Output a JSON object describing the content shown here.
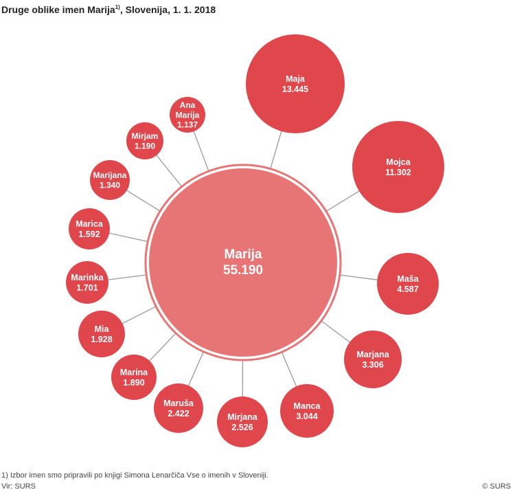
{
  "title": {
    "text": "Druge oblike imen Marija",
    "superscript": "1)",
    "suffix": ", Slovenija, 1. 1. 2018"
  },
  "colors": {
    "outer_bubble": "#e0474c",
    "center_bubble": "#e87575",
    "connector": "#999999",
    "text": "#ffffff"
  },
  "center": {
    "name": "Marija",
    "value": "55.190"
  },
  "names": [
    {
      "key": "maja",
      "lines": [
        "Maja"
      ],
      "value": "13.445"
    },
    {
      "key": "mojca",
      "lines": [
        "Mojca"
      ],
      "value": "11.302"
    },
    {
      "key": "masa",
      "lines": [
        "Maša"
      ],
      "value": "4.587"
    },
    {
      "key": "marjana",
      "lines": [
        "Marjana"
      ],
      "value": "3.306"
    },
    {
      "key": "manca",
      "lines": [
        "Manca"
      ],
      "value": "3.044"
    },
    {
      "key": "mirjana",
      "lines": [
        "Mirjana"
      ],
      "value": "2.526"
    },
    {
      "key": "marusa",
      "lines": [
        "Maruša"
      ],
      "value": "2.422"
    },
    {
      "key": "marina",
      "lines": [
        "Marina"
      ],
      "value": "1.890"
    },
    {
      "key": "mia",
      "lines": [
        "Mia"
      ],
      "value": "1.928"
    },
    {
      "key": "marinka",
      "lines": [
        "Marinka"
      ],
      "value": "1.701"
    },
    {
      "key": "marica",
      "lines": [
        "Marica"
      ],
      "value": "1.592"
    },
    {
      "key": "marijana",
      "lines": [
        "Marijana"
      ],
      "value": "1.340"
    },
    {
      "key": "mirjam",
      "lines": [
        "Mirjam"
      ],
      "value": "1.190"
    },
    {
      "key": "ana-marija",
      "lines": [
        "Ana",
        "Marija"
      ],
      "value": "1.137"
    }
  ],
  "footnote": "1) Izbor imen smo pripravili po knjigi Simona Lenarčiča Vse o imenih v Sloveniji.",
  "source": "Vir: SURS",
  "copyright": "© SURS"
}
